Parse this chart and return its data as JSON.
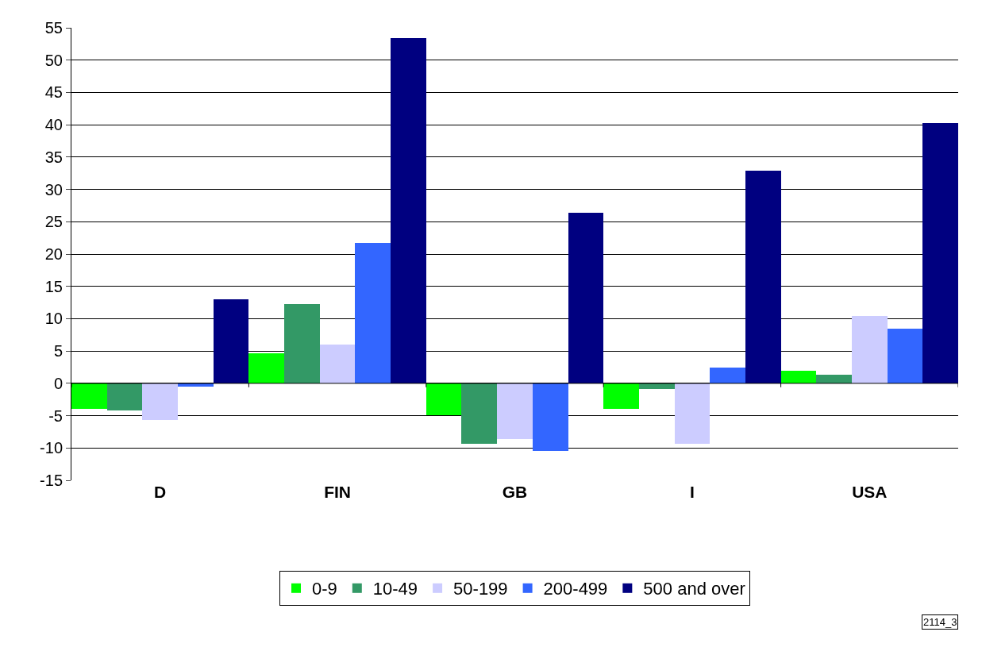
{
  "chart_data": {
    "type": "bar",
    "categories": [
      "D",
      "FIN",
      "GB",
      "I",
      "USA"
    ],
    "series": [
      {
        "name": "0-9",
        "color": "#00ff00",
        "values": [
          -4.0,
          4.7,
          -4.9,
          -4.0,
          1.9
        ]
      },
      {
        "name": "10-49",
        "color": "#339966",
        "values": [
          -4.2,
          12.3,
          -9.3,
          -0.9,
          1.3
        ]
      },
      {
        "name": "50-199",
        "color": "#ccccff",
        "values": [
          -5.7,
          6.0,
          -8.6,
          -9.3,
          10.4
        ]
      },
      {
        "name": "200-499",
        "color": "#3366ff",
        "values": [
          -0.5,
          21.7,
          -10.5,
          2.5,
          8.5
        ]
      },
      {
        "name": "500 and over",
        "color": "#000080",
        "values": [
          13.0,
          53.4,
          26.4,
          32.9,
          40.3
        ]
      }
    ],
    "ylim": [
      -15,
      55
    ],
    "yticks": [
      -15,
      -10,
      -5,
      0,
      5,
      10,
      15,
      20,
      25,
      30,
      35,
      40,
      45,
      50,
      55
    ],
    "grid": "y",
    "legend": "bottom",
    "annotations": [
      "2114_3"
    ]
  }
}
